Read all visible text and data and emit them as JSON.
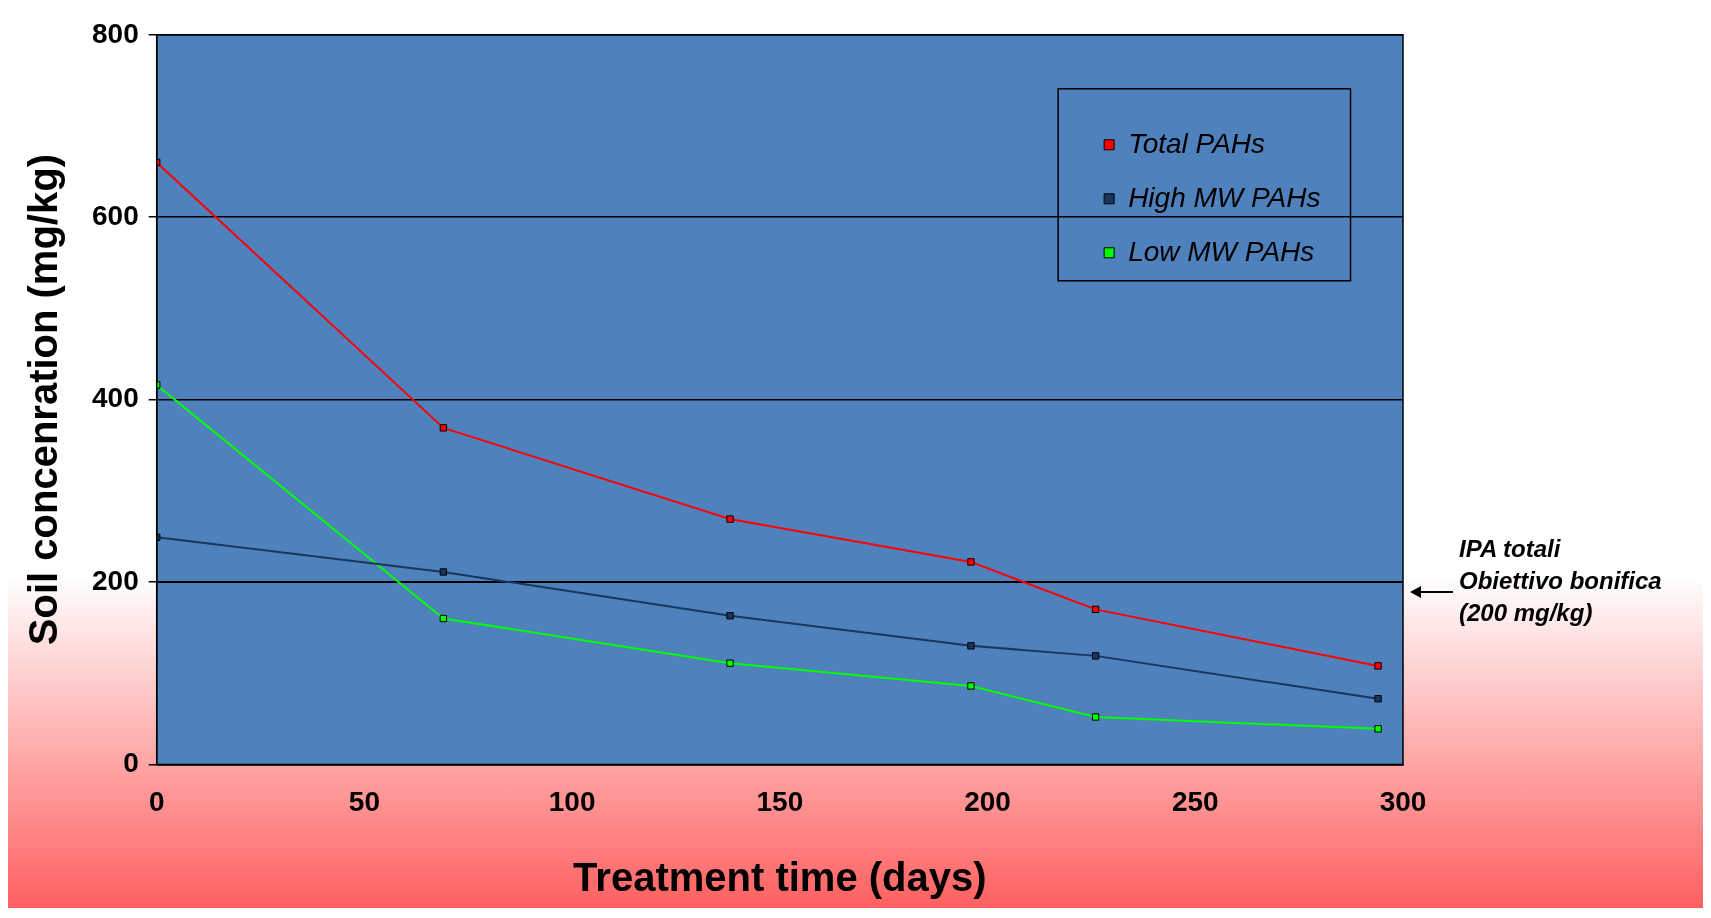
{
  "chart_data": {
    "type": "line",
    "xlabel": "Treatment time (days)",
    "ylabel": "Soil concenration (mg/kg)",
    "x": [
      0,
      69,
      138,
      196,
      226,
      294
    ],
    "series": [
      {
        "name": "Total PAHs",
        "color": "#ff0000",
        "values": [
          660,
          369,
          269,
          222,
          170,
          108
        ]
      },
      {
        "name": "High MW PAHs",
        "color": "#17375e",
        "values": [
          249,
          211,
          163,
          130,
          119,
          72
        ]
      },
      {
        "name": "Low MW PAHs",
        "color": "#00ff00",
        "values": [
          416,
          160,
          111,
          86,
          52,
          39
        ]
      }
    ],
    "xlim": [
      0,
      300
    ],
    "xticks": [
      0,
      50,
      100,
      150,
      200,
      250,
      300
    ],
    "ylim": [
      0,
      800
    ],
    "yticks": [
      0,
      200,
      400,
      600,
      800
    ],
    "grid": "y",
    "legend": "top right",
    "marker": "square",
    "line_style": "solid",
    "ref_lines": [
      {
        "axis": "y",
        "value": 200,
        "label": "IPA totali\nObiettivo bonifica\n(200 mg/kg)",
        "color": "#000000"
      }
    ]
  }
}
